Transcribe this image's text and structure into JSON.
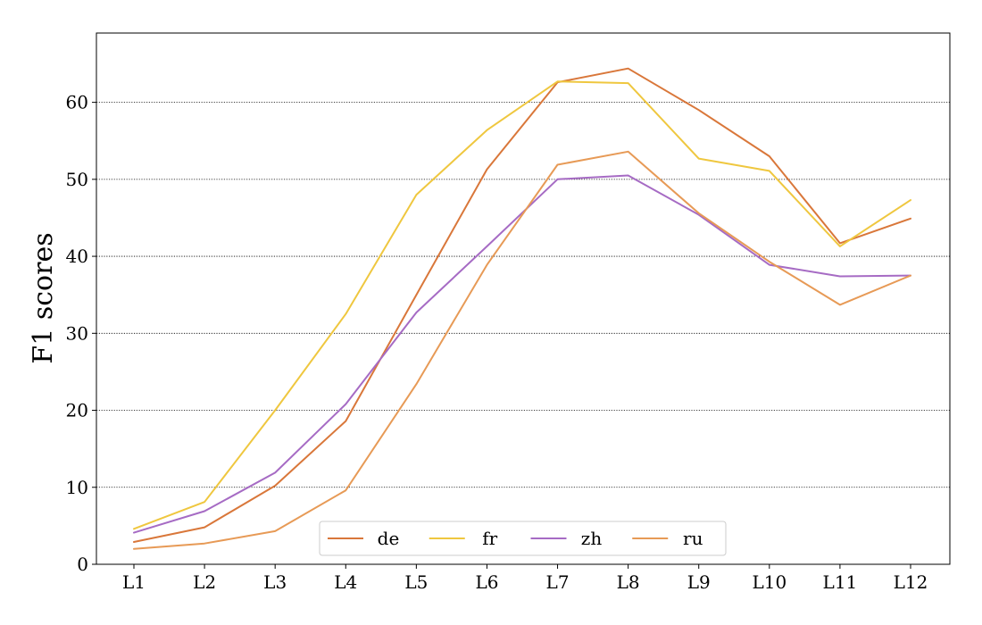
{
  "chart_data": {
    "type": "line",
    "title": "",
    "xlabel": "",
    "ylabel": "F1 scores",
    "categories": [
      "L1",
      "L2",
      "L3",
      "L4",
      "L5",
      "L6",
      "L7",
      "L8",
      "L9",
      "L10",
      "L11",
      "L12"
    ],
    "series": [
      {
        "name": "de",
        "color": "#d9773a",
        "values": [
          2.9,
          4.8,
          10.2,
          18.6,
          35.0,
          51.3,
          62.6,
          64.4,
          59.0,
          53.0,
          41.7,
          44.9
        ]
      },
      {
        "name": "fr",
        "color": "#efc73f",
        "values": [
          4.6,
          8.1,
          20.0,
          32.5,
          48.0,
          56.4,
          62.7,
          62.5,
          52.7,
          51.1,
          41.3,
          47.3
        ]
      },
      {
        "name": "zh",
        "color": "#a66bc4",
        "values": [
          4.1,
          6.9,
          11.9,
          20.8,
          32.7,
          41.3,
          50.0,
          50.5,
          45.4,
          38.9,
          37.4,
          37.5
        ]
      },
      {
        "name": "ru",
        "color": "#e79a56",
        "values": [
          2.0,
          2.7,
          4.3,
          9.6,
          23.4,
          38.9,
          51.9,
          53.6,
          45.6,
          39.3,
          33.7,
          37.5
        ]
      }
    ],
    "ylim": [
      0,
      69
    ],
    "yticks": [
      0,
      10,
      20,
      30,
      40,
      50,
      60
    ],
    "grid": "horizontal-dotted",
    "legend": {
      "placement": "bottom-center",
      "columns": 4
    }
  }
}
